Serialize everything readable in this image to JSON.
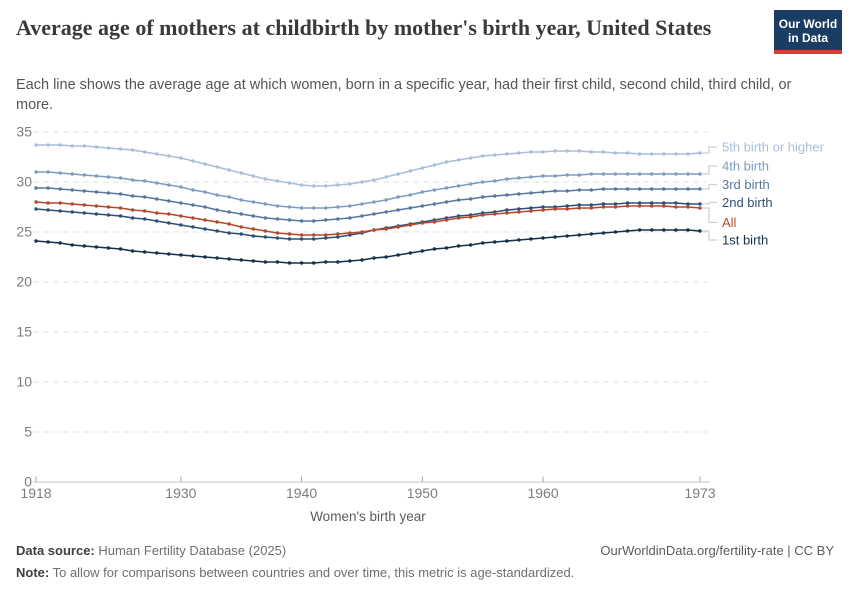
{
  "header": {
    "title": "Average age of mothers at childbirth by mother's birth year, United States",
    "subtitle": "Each line shows the average age at which women, born in a specific year, had their first child, second child, third child, or more."
  },
  "logo": {
    "line1": "Our World",
    "line2": "in Data",
    "bg_color": "#1b3c63",
    "accent_color": "#dc3c34"
  },
  "chart_data": {
    "type": "line",
    "title": "Average age of mothers at childbirth by mother's birth year, United States",
    "xlabel": "Women's birth year",
    "ylabel": "",
    "x_start": 1918,
    "x_end": 1973,
    "x_step": 1,
    "x_ticks": [
      1918,
      1930,
      1940,
      1950,
      1960,
      1973
    ],
    "y_ticks": [
      0,
      5,
      10,
      15,
      20,
      25,
      30,
      35
    ],
    "ylim": [
      0,
      35
    ],
    "grid": "horizontal-dashed",
    "legend_position": "right",
    "series": [
      {
        "name": "5th birth or higher",
        "color": "#a9bed9",
        "values": [
          33.7,
          33.7,
          33.7,
          33.6,
          33.6,
          33.5,
          33.4,
          33.3,
          33.2,
          33.0,
          32.8,
          32.6,
          32.4,
          32.1,
          31.8,
          31.5,
          31.2,
          30.9,
          30.6,
          30.3,
          30.1,
          29.9,
          29.7,
          29.6,
          29.6,
          29.7,
          29.8,
          30.0,
          30.2,
          30.5,
          30.8,
          31.1,
          31.4,
          31.7,
          32.0,
          32.2,
          32.4,
          32.6,
          32.7,
          32.8,
          32.9,
          33.0,
          33.0,
          33.1,
          33.1,
          33.1,
          33.0,
          33.0,
          32.9,
          32.9,
          32.8,
          32.8,
          32.8,
          32.8,
          32.8,
          32.9
        ]
      },
      {
        "name": "4th birth",
        "color": "#7e9cc0",
        "values": [
          31.0,
          31.0,
          30.9,
          30.8,
          30.7,
          30.6,
          30.5,
          30.4,
          30.2,
          30.1,
          29.9,
          29.7,
          29.5,
          29.2,
          29.0,
          28.7,
          28.5,
          28.2,
          28.0,
          27.8,
          27.6,
          27.5,
          27.4,
          27.4,
          27.4,
          27.5,
          27.6,
          27.8,
          28.0,
          28.2,
          28.5,
          28.7,
          29.0,
          29.2,
          29.4,
          29.6,
          29.8,
          30.0,
          30.1,
          30.3,
          30.4,
          30.5,
          30.6,
          30.6,
          30.7,
          30.7,
          30.8,
          30.8,
          30.8,
          30.8,
          30.8,
          30.8,
          30.8,
          30.8,
          30.8,
          30.8
        ]
      },
      {
        "name": "3rd birth",
        "color": "#56789f",
        "values": [
          29.4,
          29.4,
          29.3,
          29.2,
          29.1,
          29.0,
          28.9,
          28.8,
          28.6,
          28.5,
          28.3,
          28.1,
          27.9,
          27.7,
          27.5,
          27.2,
          27.0,
          26.8,
          26.6,
          26.4,
          26.3,
          26.2,
          26.1,
          26.1,
          26.2,
          26.3,
          26.4,
          26.6,
          26.8,
          27.0,
          27.2,
          27.4,
          27.6,
          27.8,
          28.0,
          28.2,
          28.3,
          28.5,
          28.6,
          28.7,
          28.8,
          28.9,
          29.0,
          29.1,
          29.1,
          29.2,
          29.2,
          29.3,
          29.3,
          29.3,
          29.3,
          29.3,
          29.3,
          29.3,
          29.3,
          29.3
        ]
      },
      {
        "name": "2nd birth",
        "color": "#2d5077",
        "values": [
          27.3,
          27.2,
          27.1,
          27.0,
          26.9,
          26.8,
          26.7,
          26.6,
          26.4,
          26.3,
          26.1,
          25.9,
          25.7,
          25.5,
          25.3,
          25.1,
          24.9,
          24.8,
          24.6,
          24.5,
          24.4,
          24.3,
          24.3,
          24.3,
          24.4,
          24.5,
          24.7,
          24.9,
          25.2,
          25.4,
          25.6,
          25.8,
          26.0,
          26.2,
          26.4,
          26.6,
          26.7,
          26.9,
          27.0,
          27.2,
          27.3,
          27.4,
          27.5,
          27.5,
          27.6,
          27.7,
          27.7,
          27.8,
          27.8,
          27.9,
          27.9,
          27.9,
          27.9,
          27.9,
          27.8,
          27.8
        ]
      },
      {
        "name": "All",
        "color": "#b6492c",
        "values": [
          28.0,
          27.9,
          27.9,
          27.8,
          27.7,
          27.6,
          27.5,
          27.4,
          27.2,
          27.1,
          26.9,
          26.8,
          26.6,
          26.4,
          26.2,
          26.0,
          25.8,
          25.5,
          25.3,
          25.1,
          24.9,
          24.8,
          24.7,
          24.7,
          24.7,
          24.8,
          24.9,
          25.0,
          25.2,
          25.3,
          25.5,
          25.7,
          25.9,
          26.0,
          26.2,
          26.4,
          26.5,
          26.7,
          26.8,
          26.9,
          27.0,
          27.1,
          27.2,
          27.3,
          27.3,
          27.4,
          27.4,
          27.5,
          27.5,
          27.6,
          27.6,
          27.6,
          27.6,
          27.5,
          27.5,
          27.4
        ]
      },
      {
        "name": "1st birth",
        "color": "#16304e",
        "values": [
          24.1,
          24.0,
          23.9,
          23.7,
          23.6,
          23.5,
          23.4,
          23.3,
          23.1,
          23.0,
          22.9,
          22.8,
          22.7,
          22.6,
          22.5,
          22.4,
          22.3,
          22.2,
          22.1,
          22.0,
          22.0,
          21.9,
          21.9,
          21.9,
          22.0,
          22.0,
          22.1,
          22.2,
          22.4,
          22.5,
          22.7,
          22.9,
          23.1,
          23.3,
          23.4,
          23.6,
          23.7,
          23.9,
          24.0,
          24.1,
          24.2,
          24.3,
          24.4,
          24.5,
          24.6,
          24.7,
          24.8,
          24.9,
          25.0,
          25.1,
          25.2,
          25.2,
          25.2,
          25.2,
          25.2,
          25.1
        ]
      }
    ]
  },
  "footer": {
    "datasource_label": "Data source:",
    "datasource_value": " Human Fertility Database (2025)",
    "link_text": "OurWorldinData.org/fertility-rate | CC BY",
    "note_label": "Note:",
    "note_value": " To allow for comparisons between countries and over time, this metric is age-standardized."
  }
}
